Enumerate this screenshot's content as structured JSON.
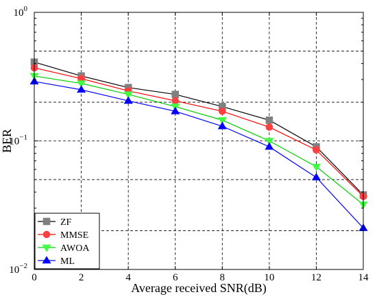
{
  "chart_data": {
    "type": "line",
    "xlabel": "Average received SNR(dB)",
    "ylabel": "BER",
    "y_scale": "log",
    "xlim": [
      0,
      14
    ],
    "ylim": [
      0.01,
      1
    ],
    "grid": true,
    "grid_style": "dashed",
    "legend_position": "bottom-left",
    "x": [
      0,
      2,
      4,
      6,
      8,
      10,
      12,
      14
    ],
    "x_ticks": [
      "0",
      "2",
      "4",
      "6",
      "8",
      "10",
      "12",
      "14"
    ],
    "y_ticks": [
      {
        "value": 1,
        "base": "10",
        "exp": "0"
      },
      {
        "value": 0.1,
        "base": "10",
        "exp": "−1"
      },
      {
        "value": 0.01,
        "base": "10",
        "exp": "−2"
      }
    ],
    "series": [
      {
        "name": "ZF",
        "color": "#000000",
        "marker_color": "#808080",
        "marker": "square",
        "values": [
          0.41,
          0.32,
          0.26,
          0.23,
          0.185,
          0.145,
          0.09,
          0.038
        ]
      },
      {
        "name": "MMSE",
        "color": "#ff0000",
        "marker_color": "#ff4040",
        "marker": "circle",
        "values": [
          0.37,
          0.305,
          0.245,
          0.205,
          0.17,
          0.128,
          0.085,
          0.037
        ]
      },
      {
        "name": "AWOA",
        "color": "#00cc00",
        "marker_color": "#40ff40",
        "marker": "triangle-down",
        "values": [
          0.32,
          0.28,
          0.23,
          0.185,
          0.145,
          0.1,
          0.063,
          0.032
        ]
      },
      {
        "name": "ML",
        "color": "#0000ff",
        "marker_color": "#0000ff",
        "marker": "triangle-up",
        "values": [
          0.29,
          0.25,
          0.205,
          0.17,
          0.13,
          0.09,
          0.052,
          0.021
        ]
      }
    ]
  }
}
